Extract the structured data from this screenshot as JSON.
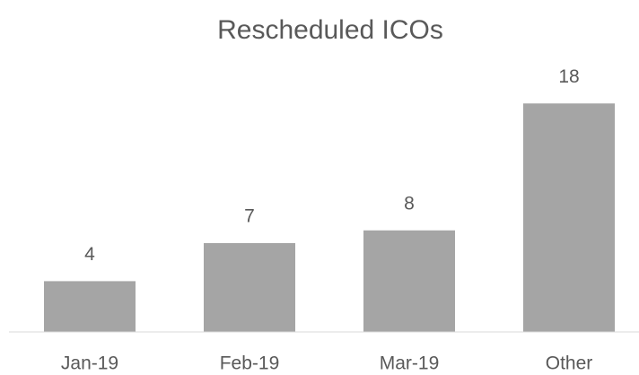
{
  "chart_data": {
    "type": "bar",
    "title": "Rescheduled ICOs",
    "categories": [
      "Jan-19",
      "Feb-19",
      "Mar-19",
      "Other"
    ],
    "values": [
      4,
      7,
      8,
      18
    ],
    "color": "#a5a5a5",
    "ylim": [
      0,
      20
    ],
    "grid": false
  }
}
